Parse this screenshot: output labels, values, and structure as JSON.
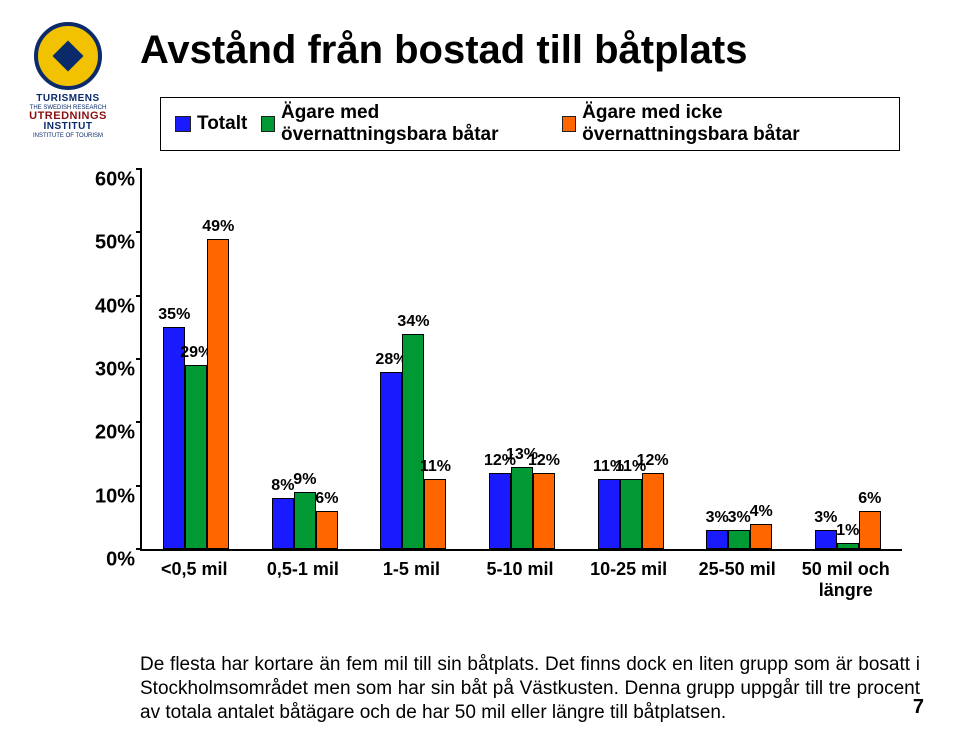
{
  "page_number": "7",
  "logo": {
    "line1": "TURISMENS",
    "line2": "THE SWEDISH RESEARCH",
    "line3": "UTREDNINGS",
    "line4": "INSTITUT",
    "line5": "INSTITUTE OF TOURISM"
  },
  "title": "Avstånd från bostad till båtplats",
  "chart": {
    "type": "bar",
    "y_max": 60,
    "y_tick_step": 10,
    "y_suffix": "%",
    "label_fontsize": 20,
    "background_color": "#ffffff",
    "axis_color": "#000000",
    "bar_border_color": "#000000",
    "value_label_fontsize": 16,
    "series": [
      {
        "name": "Totalt",
        "color": "#1a1aff"
      },
      {
        "name": "Ägare med övernattningsbara båtar",
        "color": "#009933"
      },
      {
        "name": "Ägare med icke övernattningsbara båtar",
        "color": "#ff6600"
      }
    ],
    "categories": [
      "<0,5 mil",
      "0,5-1 mil",
      "1-5 mil",
      "5-10 mil",
      "10-25 mil",
      "25-50 mil",
      "50 mil och längre"
    ],
    "values": [
      [
        35,
        29,
        49
      ],
      [
        8,
        9,
        6
      ],
      [
        28,
        34,
        11
      ],
      [
        12,
        13,
        12
      ],
      [
        11,
        11,
        12
      ],
      [
        3,
        3,
        4
      ],
      [
        3,
        1,
        6
      ]
    ]
  },
  "caption": "De flesta har kortare än fem mil till sin båtplats. Det finns dock en liten grupp som är bosatt i Stockholmsområdet men som har sin båt på Västkusten. Denna grupp uppgår till tre procent av totala antalet båtägare och de har 50 mil eller längre till båtplatsen."
}
